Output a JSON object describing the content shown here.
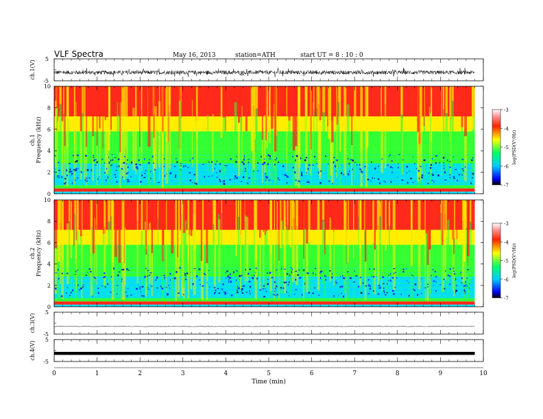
{
  "header": {
    "title": "VLF  Spectra",
    "date": "May 16, 2013",
    "station": "station=ATH",
    "start_ut": "start  UT  =   8 : 10 : 0"
  },
  "chart_data": [
    {
      "type": "line",
      "panel": "ch1",
      "ylabel": "ch.1(V)",
      "yticks": [
        "5",
        "-5"
      ],
      "ylim": [
        -5,
        5
      ],
      "x_range": [
        0,
        9.8
      ],
      "description_level": -1.2,
      "amplitude": 0.9
    },
    {
      "type": "heatmap",
      "panel": "spec1",
      "ylabel": "ch.1\nFrequency (kHz)",
      "yticks": [
        "0",
        "2",
        "4",
        "6",
        "8",
        "10"
      ],
      "ylim": [
        0,
        10
      ],
      "x_range": [
        0,
        9.8
      ],
      "colorbar": {
        "label": "log(PSD(V²/Hz)",
        "ticks": [
          "-3",
          "-4",
          "-5",
          "-6",
          "-7"
        ],
        "range": [
          -7,
          -3
        ]
      }
    },
    {
      "type": "heatmap",
      "panel": "spec2",
      "ylabel": "ch.2\nFrequency (kHz)",
      "yticks": [
        "0",
        "2",
        "4",
        "6",
        "8",
        "10"
      ],
      "ylim": [
        0,
        10
      ],
      "x_range": [
        0,
        9.8
      ],
      "colorbar": {
        "label": "log(PSD(V²/Hz)",
        "ticks": [
          "-3",
          "-4",
          "-5",
          "-6",
          "-7"
        ],
        "range": [
          -7,
          -3
        ]
      }
    },
    {
      "type": "line",
      "panel": "ch3",
      "ylabel": "ch.3(V)",
      "yticks": [
        "5",
        "-5"
      ],
      "ylim": [
        -5,
        5
      ],
      "x_range": [
        0,
        9.8
      ],
      "level": -1.5
    },
    {
      "type": "line",
      "panel": "ch4",
      "ylabel": "ch.4(V)",
      "yticks": [
        "5",
        "-5"
      ],
      "ylim": [
        -5,
        5
      ],
      "x_range": [
        0,
        9.8
      ],
      "level": -1.3
    }
  ],
  "xaxis": {
    "label": "Time  (min)",
    "ticks": [
      "0",
      "1",
      "2",
      "3",
      "4",
      "5",
      "6",
      "7",
      "8",
      "9",
      "10"
    ],
    "range": [
      0,
      10
    ]
  },
  "colors": {
    "red": "#ff2a1a",
    "yellow": "#ffee00",
    "green": "#33ff33",
    "cyan": "#00ddff",
    "blue": "#0022ff"
  }
}
